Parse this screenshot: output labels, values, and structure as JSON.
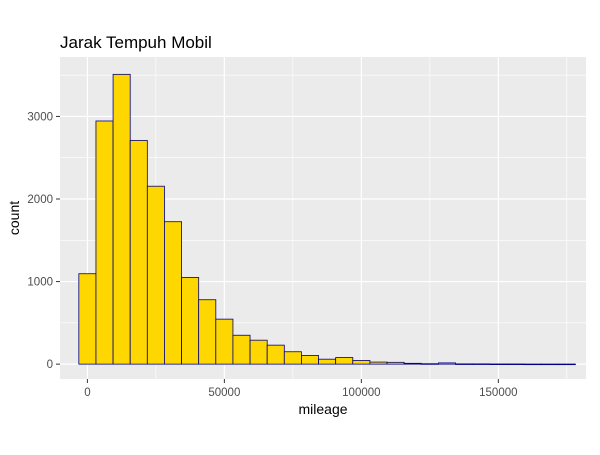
{
  "chart_data": {
    "type": "bar",
    "title": "Jarak Tempuh Mobil",
    "xlabel": "mileage",
    "ylabel": "count",
    "xlim": [
      -10000,
      182000
    ],
    "ylim": [
      -180,
      3720
    ],
    "x_ticks": [
      0,
      50000,
      100000,
      150000
    ],
    "x_tick_labels": [
      "0",
      "50000",
      "100000",
      "150000"
    ],
    "y_ticks": [
      0,
      1000,
      2000,
      3000
    ],
    "y_tick_labels": [
      "0",
      "1000",
      "2000",
      "3000"
    ],
    "bin_width": 6250,
    "bin_centers": [
      0,
      6250,
      12500,
      18750,
      25000,
      31250,
      37500,
      43750,
      50000,
      56250,
      62500,
      68750,
      75000,
      81250,
      87500,
      93750,
      100000,
      106250,
      112500,
      118750,
      125000,
      131250,
      137500,
      143750,
      150000,
      156250,
      162500,
      168750,
      175000
    ],
    "values": [
      1095,
      2945,
      3510,
      2710,
      2155,
      1725,
      1050,
      780,
      545,
      350,
      290,
      230,
      150,
      105,
      60,
      80,
      45,
      25,
      22,
      10,
      5,
      15,
      3,
      3,
      2,
      2,
      1,
      1,
      1
    ],
    "colors": {
      "fill": "#FFD700",
      "outline": "#000080",
      "panel": "#EBEBEB",
      "grid": "#FFFFFF"
    },
    "grid": true
  }
}
